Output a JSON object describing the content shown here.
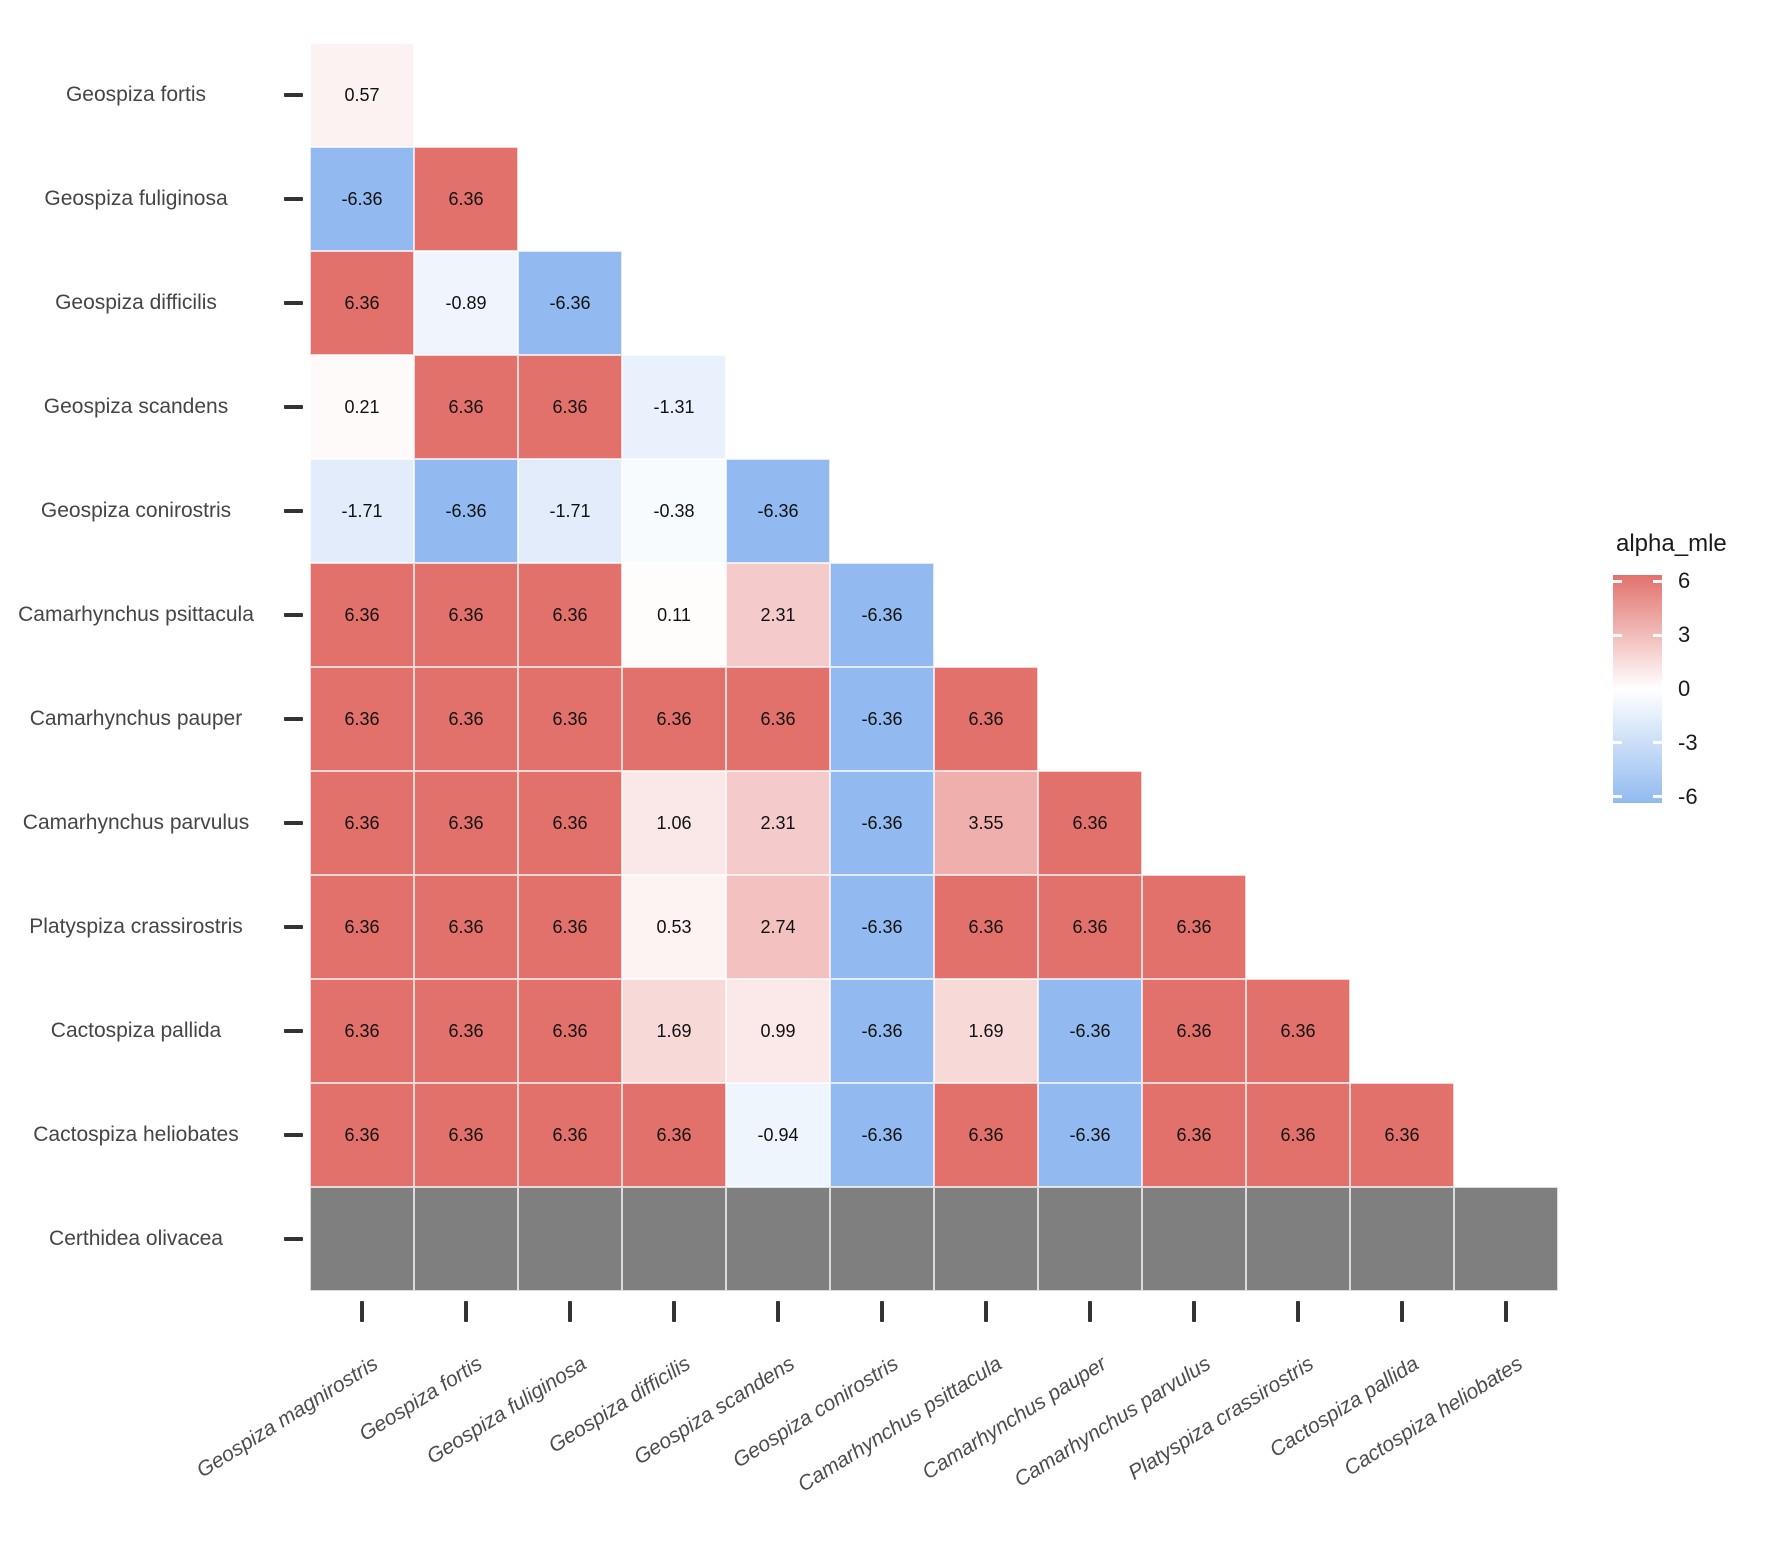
{
  "chart_data": {
    "type": "heatmap",
    "shape": "lower-triangle",
    "title": "",
    "x_labels": [
      "Geospiza magnirostris",
      "Geospiza fortis",
      "Geospiza fuliginosa",
      "Geospiza difficilis",
      "Geospiza scandens",
      "Geospiza conirostris",
      "Camarhynchus psittacula",
      "Camarhynchus pauper",
      "Camarhynchus parvulus",
      "Platyspiza crassirostris",
      "Cactospiza pallida",
      "Cactospiza heliobates"
    ],
    "y_labels": [
      "Geospiza fortis",
      "Geospiza fuliginosa",
      "Geospiza difficilis",
      "Geospiza scandens",
      "Geospiza conirostris",
      "Camarhynchus psittacula",
      "Camarhynchus pauper",
      "Camarhynchus parvulus",
      "Platyspiza crassirostris",
      "Cactospiza pallida",
      "Cactospiza heliobates",
      "Certhidea olivacea"
    ],
    "values": [
      [
        0.57
      ],
      [
        -6.36,
        6.36
      ],
      [
        6.36,
        -0.89,
        -6.36
      ],
      [
        0.21,
        6.36,
        6.36,
        -1.31
      ],
      [
        -1.71,
        -6.36,
        -1.71,
        -0.38,
        -6.36
      ],
      [
        6.36,
        6.36,
        6.36,
        0.11,
        2.31,
        -6.36
      ],
      [
        6.36,
        6.36,
        6.36,
        6.36,
        6.36,
        -6.36,
        6.36
      ],
      [
        6.36,
        6.36,
        6.36,
        1.06,
        2.31,
        -6.36,
        3.55,
        6.36
      ],
      [
        6.36,
        6.36,
        6.36,
        0.53,
        2.74,
        -6.36,
        6.36,
        6.36,
        6.36
      ],
      [
        6.36,
        6.36,
        6.36,
        1.69,
        0.99,
        -6.36,
        1.69,
        -6.36,
        6.36,
        6.36
      ],
      [
        6.36,
        6.36,
        6.36,
        6.36,
        -0.94,
        -6.36,
        6.36,
        -6.36,
        6.36,
        6.36,
        6.36
      ],
      [
        null,
        null,
        null,
        null,
        null,
        null,
        null,
        null,
        null,
        null,
        null,
        null
      ]
    ],
    "value_decimals": 2,
    "legend": {
      "title": "alpha_mle",
      "ticks": [
        6,
        3,
        0,
        -3,
        -6
      ],
      "domain": [
        -6.36,
        6.36
      ]
    },
    "colors": {
      "high": "#E2716C",
      "mid": "#FFFFFF",
      "low": "#92BAF0",
      "na": "#7F7F7F",
      "axis_text": "#454545",
      "x_axis_text": "#4D4D4D",
      "tick_mark": "#333333",
      "cell_text": "#111111",
      "legend_text": "#1A1A1A"
    },
    "grid_lines": true,
    "legend_position": "right"
  }
}
